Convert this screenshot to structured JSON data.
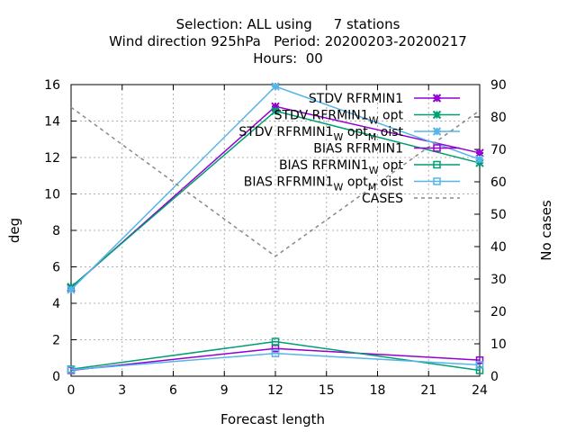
{
  "chart_data": {
    "type": "line",
    "title_lines": [
      "Selection: ALL using     7 stations",
      "Wind direction 925hPa   Period: 20200203-20200217",
      "Hours:  00"
    ],
    "xlabel": "Forecast length",
    "ylabel": "deg",
    "y2label": "No cases",
    "x": [
      0,
      12,
      24
    ],
    "xlim": [
      0,
      24
    ],
    "xticks": [
      "0",
      "3",
      "6",
      "9",
      "12",
      "15",
      "18",
      "21",
      "24"
    ],
    "ylim": [
      0,
      16
    ],
    "yticks": [
      "0",
      "2",
      "4",
      "6",
      "8",
      "10",
      "12",
      "14",
      "16"
    ],
    "y2lim": [
      0,
      90
    ],
    "y2ticks": [
      "0",
      "10",
      "20",
      "30",
      "40",
      "50",
      "60",
      "70",
      "80",
      "90"
    ],
    "grid": true,
    "legend_position": "top-right",
    "series": [
      {
        "name": "STDV RFRMIN1",
        "marker": "star",
        "axis": "y1",
        "color": "#9400d3",
        "values": [
          4.85,
          14.8,
          12.25
        ]
      },
      {
        "name": "STDV RFRMIN1_W opt",
        "marker": "star",
        "axis": "y1",
        "color": "#009e73",
        "values": [
          4.9,
          14.55,
          11.7
        ]
      },
      {
        "name": "STDV RFRMIN1_W opt_M oist",
        "marker": "star",
        "axis": "y1",
        "color": "#56b4e9",
        "values": [
          4.75,
          15.9,
          11.9
        ]
      },
      {
        "name": "BIAS RFRMIN1",
        "marker": "square",
        "axis": "y1",
        "color": "#9400d3",
        "values": [
          0.32,
          1.52,
          0.88
        ]
      },
      {
        "name": "BIAS RFRMIN1_W opt",
        "marker": "square",
        "axis": "y1",
        "color": "#009e73",
        "values": [
          0.38,
          1.9,
          0.32
        ]
      },
      {
        "name": "BIAS RFRMIN1_W opt_M oist",
        "marker": "square",
        "axis": "y1",
        "color": "#56b4e9",
        "values": [
          0.35,
          1.25,
          0.62
        ]
      },
      {
        "name": "CASES",
        "marker": "none",
        "axis": "y2",
        "color": "#888888",
        "dashed": true,
        "values": [
          83,
          37,
          82
        ]
      }
    ]
  }
}
